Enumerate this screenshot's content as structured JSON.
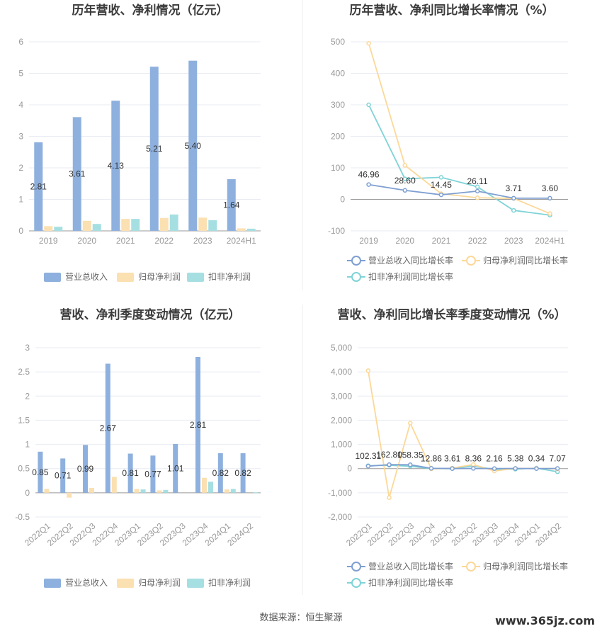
{
  "page": {
    "source_text": "数据来源：恒生聚源",
    "watermark": "www.365jz.com"
  },
  "colors": {
    "revenue": "#8eb0de",
    "net_profit": "#fbe0b2",
    "deducted_profit": "#a6dfe2",
    "revenue_line": "#7e9fd1",
    "net_profit_line": "#fcd898",
    "deducted_line": "#7fd3d7"
  },
  "chart_data": [
    {
      "type": "bar",
      "title": "历年营收、净利情况（亿元）",
      "categories": [
        "2019",
        "2020",
        "2021",
        "2022",
        "2023",
        "2024H1"
      ],
      "yticks": [
        "6",
        "5",
        "4",
        "3",
        "2",
        "1",
        "0"
      ],
      "ylim": [
        0,
        6
      ],
      "series": [
        {
          "name": "营业总收入",
          "values": [
            2.81,
            3.61,
            4.13,
            5.21,
            5.4,
            1.64
          ],
          "labels": [
            "2.81",
            "3.61",
            "4.13",
            "5.21",
            "5.40",
            "1.64"
          ]
        },
        {
          "name": "归母净利润",
          "values": [
            0.15,
            0.32,
            0.38,
            0.41,
            0.42,
            0.08
          ]
        },
        {
          "name": "扣非净利润",
          "values": [
            0.13,
            0.22,
            0.38,
            0.52,
            0.34,
            0.07
          ]
        }
      ],
      "legend": "bottom"
    },
    {
      "type": "line",
      "title": "历年营收、净利同比增长率情况（%）",
      "categories": [
        "2019",
        "2020",
        "2021",
        "2022",
        "2023",
        "2024H1"
      ],
      "yticks": [
        "500",
        "400",
        "300",
        "200",
        "100",
        "0",
        "-100"
      ],
      "ylim": [
        -100,
        500
      ],
      "series": [
        {
          "name": "营业总收入同比增长率",
          "values": [
            46.96,
            28.6,
            14.45,
            26.11,
            3.71,
            3.6
          ],
          "labels": [
            "46.96",
            "28.60",
            "14.45",
            "26.11",
            "3.71",
            "3.60"
          ]
        },
        {
          "name": "归母净利润同比增长率",
          "values": [
            495,
            108,
            18,
            5,
            3,
            -45
          ]
        },
        {
          "name": "扣非净利润同比增长率",
          "values": [
            300,
            65,
            70,
            40,
            -35,
            -50
          ]
        }
      ],
      "legend": "bottom"
    },
    {
      "type": "bar",
      "title": "营收、净利季度变动情况（亿元）",
      "categories": [
        "2022Q1",
        "2022Q2",
        "2022Q3",
        "2022Q4",
        "2023Q1",
        "2023Q2",
        "2023Q3",
        "2023Q4",
        "2024Q1",
        "2024Q2"
      ],
      "yticks": [
        "3",
        "2.5",
        "2",
        "1.5",
        "1",
        "0.5",
        "0",
        "-0.5"
      ],
      "ylim": [
        -0.5,
        3
      ],
      "series": [
        {
          "name": "营业总收入",
          "values": [
            0.85,
            0.71,
            0.99,
            2.67,
            0.81,
            0.77,
            1.01,
            2.81,
            0.82,
            0.82
          ],
          "labels": [
            "0.85",
            "0.71",
            "0.99",
            "2.67",
            "0.81",
            "0.77",
            "1.01",
            "2.81",
            "0.82",
            "0.82"
          ]
        },
        {
          "name": "归母净利润",
          "values": [
            0.08,
            -0.1,
            0.1,
            0.33,
            0.08,
            0.05,
            0.0,
            0.31,
            0.07,
            0.0
          ]
        },
        {
          "name": "扣非净利润",
          "values": [
            0.0,
            0.0,
            0.0,
            0.0,
            0.07,
            0.06,
            0.0,
            0.23,
            0.08,
            0.01
          ]
        }
      ],
      "legend": "bottom"
    },
    {
      "type": "line",
      "title": "营收、净利同比增长率季度变动情况（%）",
      "categories": [
        "2022Q1",
        "2022Q2",
        "2022Q3",
        "2022Q4",
        "2023Q1",
        "2023Q2",
        "2023Q3",
        "2023Q4",
        "2024Q1",
        "2024Q2"
      ],
      "yticks": [
        "5,000",
        "4,000",
        "3,000",
        "2,000",
        "1,000",
        "0",
        "-1,000",
        "-2,000"
      ],
      "ylim": [
        -2000,
        5000
      ],
      "series": [
        {
          "name": "营业总收入同比增长率",
          "values": [
            102.31,
            162.8,
            158.35,
            12.86,
            3.61,
            8.36,
            2.16,
            5.38,
            0.34,
            7.07
          ],
          "labels": [
            "102.31",
            "162.80",
            "158.35",
            "12.86",
            "3.61",
            "8.36",
            "2.16",
            "5.38",
            "0.34",
            "7.07"
          ]
        },
        {
          "name": "归母净利润同比增长率",
          "values": [
            4050,
            -1200,
            1880,
            -10,
            20,
            170,
            -100,
            10,
            10,
            -10
          ]
        },
        {
          "name": "扣非净利润同比增长率",
          "values": [
            120,
            140,
            100,
            0,
            0,
            120,
            -40,
            -20,
            20,
            -130
          ]
        }
      ],
      "legend": "bottom"
    }
  ]
}
